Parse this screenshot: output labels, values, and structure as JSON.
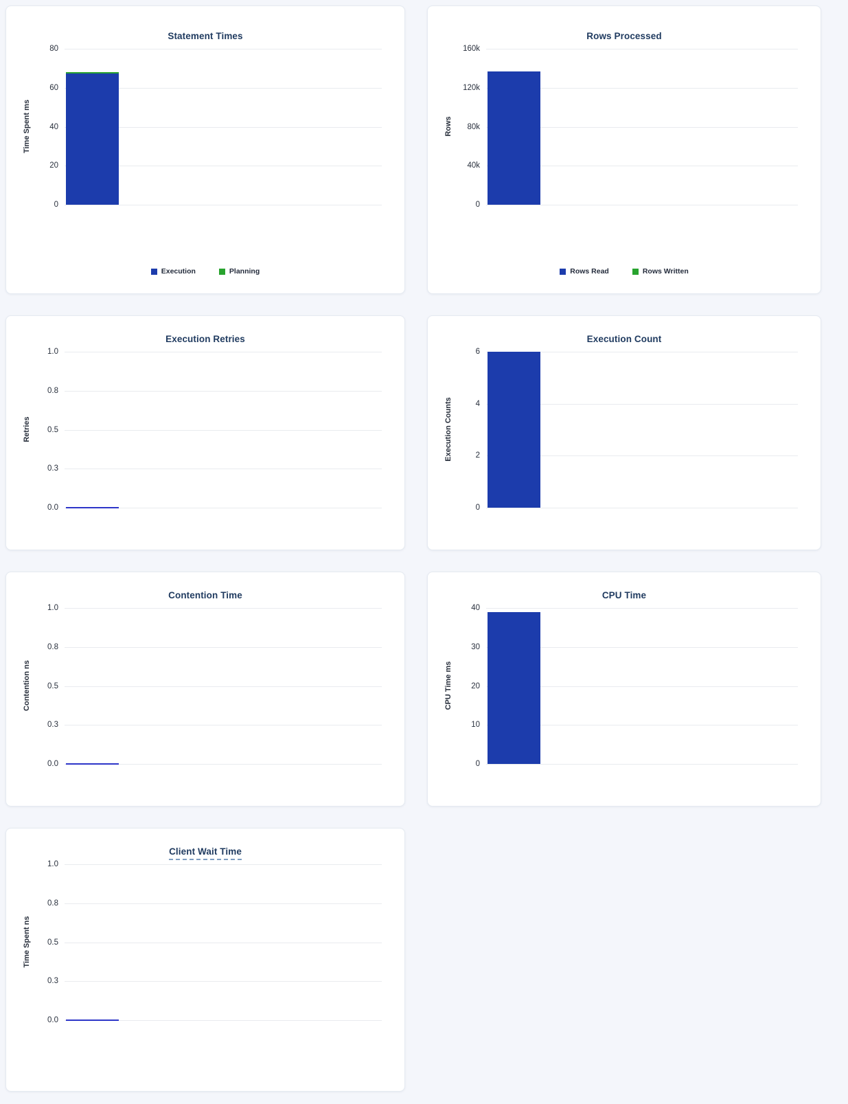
{
  "page": {
    "background": "#f4f6fb"
  },
  "colors": {
    "bar_blue": "#1c3cac",
    "bar_green": "#28a32e",
    "zero_line": "#2d35c8",
    "title_text": "#1f3a5f",
    "tick_text": "#29303d",
    "gridline": "#e9ebef"
  },
  "chart_data": [
    {
      "type": "bar",
      "title": "Statement Times",
      "ylabel": "Time Spent ms",
      "ylim": [
        0,
        80
      ],
      "grid": true,
      "legend_position": "bottom",
      "yticks": [
        {
          "label": "80",
          "value": 80
        },
        {
          "label": "60",
          "value": 60
        },
        {
          "label": "40",
          "value": 40
        },
        {
          "label": "20",
          "value": 20
        },
        {
          "label": "0",
          "value": 0
        }
      ],
      "series": [
        {
          "name": "Execution",
          "values": [
            67.3
          ],
          "color": "#1c3cac"
        },
        {
          "name": "Planning",
          "values": [
            0.7
          ],
          "color": "#28a32e"
        }
      ],
      "legend": [
        {
          "label": "Execution",
          "color": "#1c3cac"
        },
        {
          "label": "Planning",
          "color": "#28a32e"
        }
      ]
    },
    {
      "type": "bar",
      "title": "Rows Processed",
      "ylabel": "Rows",
      "ylim": [
        0,
        160000
      ],
      "grid": true,
      "legend_position": "bottom",
      "yticks": [
        {
          "label": "160k",
          "value": 160000
        },
        {
          "label": "120k",
          "value": 120000
        },
        {
          "label": "80k",
          "value": 80000
        },
        {
          "label": "40k",
          "value": 40000
        },
        {
          "label": "0",
          "value": 0
        }
      ],
      "series": [
        {
          "name": "Rows Read",
          "values": [
            137000
          ],
          "color": "#1c3cac"
        },
        {
          "name": "Rows Written",
          "values": [
            0
          ],
          "color": "#28a32e"
        }
      ],
      "legend": [
        {
          "label": "Rows Read",
          "color": "#1c3cac"
        },
        {
          "label": "Rows Written",
          "color": "#28a32e"
        }
      ]
    },
    {
      "type": "bar",
      "title": "Execution Retries",
      "ylabel": "Retries",
      "ylim": [
        0,
        1
      ],
      "grid": true,
      "zero_line": true,
      "yticks": [
        {
          "label": "1.0",
          "value": 1
        },
        {
          "label": "0.8",
          "value": 0.75
        },
        {
          "label": "0.5",
          "value": 0.5
        },
        {
          "label": "0.3",
          "value": 0.25
        },
        {
          "label": "0.0",
          "value": 0
        }
      ],
      "series": [
        {
          "name": "Retries",
          "values": [
            0
          ],
          "color": "#1c3cac"
        }
      ]
    },
    {
      "type": "bar",
      "title": "Execution Count",
      "ylabel": "Execution Counts",
      "ylim": [
        0,
        6
      ],
      "grid": true,
      "yticks": [
        {
          "label": "6",
          "value": 6
        },
        {
          "label": "4",
          "value": 4
        },
        {
          "label": "2",
          "value": 2
        },
        {
          "label": "0",
          "value": 0
        }
      ],
      "series": [
        {
          "name": "Execution Count",
          "values": [
            6
          ],
          "color": "#1c3cac"
        }
      ]
    },
    {
      "type": "bar",
      "title": "Contention Time",
      "ylabel": "Contention ns",
      "ylim": [
        0,
        1
      ],
      "grid": true,
      "zero_line": true,
      "yticks": [
        {
          "label": "1.0",
          "value": 1
        },
        {
          "label": "0.8",
          "value": 0.75
        },
        {
          "label": "0.5",
          "value": 0.5
        },
        {
          "label": "0.3",
          "value": 0.25
        },
        {
          "label": "0.0",
          "value": 0
        }
      ],
      "series": [
        {
          "name": "Contention",
          "values": [
            0
          ],
          "color": "#1c3cac"
        }
      ]
    },
    {
      "type": "bar",
      "title": "CPU Time",
      "ylabel": "CPU Time ms",
      "ylim": [
        0,
        40
      ],
      "grid": true,
      "yticks": [
        {
          "label": "40",
          "value": 40
        },
        {
          "label": "30",
          "value": 30
        },
        {
          "label": "20",
          "value": 20
        },
        {
          "label": "10",
          "value": 10
        },
        {
          "label": "0",
          "value": 0
        }
      ],
      "series": [
        {
          "name": "CPU Time",
          "values": [
            39
          ],
          "color": "#1c3cac"
        }
      ]
    },
    {
      "type": "bar",
      "title": "Client Wait Time",
      "title_has_tooltip": true,
      "ylabel": "Time Spent ns",
      "ylim": [
        0,
        1
      ],
      "grid": true,
      "zero_line": true,
      "yticks": [
        {
          "label": "1.0",
          "value": 1
        },
        {
          "label": "0.8",
          "value": 0.75
        },
        {
          "label": "0.5",
          "value": 0.5
        },
        {
          "label": "0.3",
          "value": 0.25
        },
        {
          "label": "0.0",
          "value": 0
        }
      ],
      "series": [
        {
          "name": "Client Wait",
          "values": [
            0
          ],
          "color": "#1c3cac"
        }
      ]
    }
  ]
}
